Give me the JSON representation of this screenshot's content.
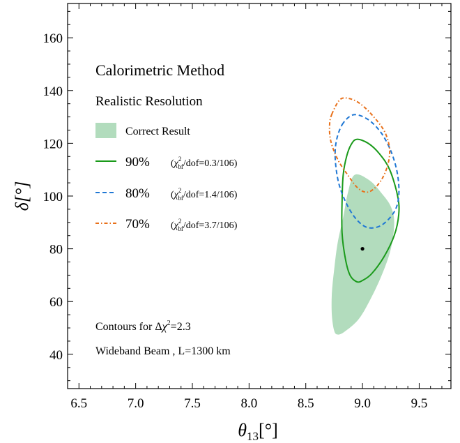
{
  "chart_data": {
    "type": "line",
    "title": "Calorimetric Method",
    "subtitle": "Realistic Resolution",
    "xlabel": "θ13[°]",
    "ylabel": "δ[°]",
    "xlim": [
      6.4,
      9.78
    ],
    "ylim": [
      27,
      173
    ],
    "x_ticks": [
      6.5,
      7.0,
      7.5,
      8.0,
      8.5,
      9.0,
      9.5
    ],
    "x_tick_labels": [
      "6.5",
      "7.0",
      "7.5",
      "8.0",
      "8.5",
      "9.0",
      "9.5"
    ],
    "y_ticks": [
      40,
      60,
      80,
      100,
      120,
      140,
      160
    ],
    "y_tick_labels": [
      "40",
      "60",
      "80",
      "100",
      "120",
      "140",
      "160"
    ],
    "grid": false,
    "legend": {
      "placement": "upper-left",
      "shaded_label": "Correct Result",
      "entries": [
        {
          "label": "90%",
          "chi2_text": "(χbf²/dof=0.3/106)",
          "chi2_num": "0.3/106",
          "color": "#1a9a1a",
          "style": "solid"
        },
        {
          "label": "80%",
          "chi2_text": "(χbf²/dof=1.4/106)",
          "chi2_num": "1.4/106",
          "color": "#1f77d4",
          "style": "dashed"
        },
        {
          "label": "70%",
          "chi2_text": "(χbf²/dof=3.7/106)",
          "chi2_num": "3.7/106",
          "color": "#e8701a",
          "style": "dashdot"
        }
      ]
    },
    "annotations": [
      "Contours for Δχ²=2.3",
      "Wideband Beam , L=1300 km"
    ],
    "best_fit_point": {
      "x": 9.0,
      "y": 80
    },
    "correct_result_region": {
      "color": "#b2dcbd",
      "points": [
        [
          8.93,
          108
        ],
        [
          9.06,
          106
        ],
        [
          9.17,
          101
        ],
        [
          9.25,
          96
        ],
        [
          9.28,
          90
        ],
        [
          9.25,
          80
        ],
        [
          9.17,
          70
        ],
        [
          9.06,
          60
        ],
        [
          8.96,
          53
        ],
        [
          8.84,
          48.5
        ],
        [
          8.78,
          47.5
        ],
        [
          8.75,
          49
        ],
        [
          8.73,
          55
        ],
        [
          8.73,
          63
        ],
        [
          8.75,
          72
        ],
        [
          8.78,
          82
        ],
        [
          8.83,
          92
        ],
        [
          8.87,
          101
        ],
        [
          8.93,
          108
        ]
      ]
    },
    "series": [
      {
        "name": "90%",
        "color": "#1a9a1a",
        "style": "solid",
        "points": [
          [
            8.95,
            121.5
          ],
          [
            9.05,
            120
          ],
          [
            9.15,
            116
          ],
          [
            9.24,
            110
          ],
          [
            9.31,
            100
          ],
          [
            9.32,
            93
          ],
          [
            9.28,
            85
          ],
          [
            9.19,
            77
          ],
          [
            9.08,
            70.5
          ],
          [
            9.0,
            68
          ],
          [
            8.95,
            67.5
          ],
          [
            8.89,
            70
          ],
          [
            8.85,
            76
          ],
          [
            8.82,
            86
          ],
          [
            8.82,
            98
          ],
          [
            8.83,
            108
          ],
          [
            8.86,
            115
          ],
          [
            8.9,
            119.5
          ],
          [
            8.95,
            121.5
          ]
        ]
      },
      {
        "name": "80%",
        "color": "#1f77d4",
        "style": "dashed",
        "points": [
          [
            8.82,
            127
          ],
          [
            8.9,
            130.5
          ],
          [
            8.98,
            130.5
          ],
          [
            9.08,
            128
          ],
          [
            9.18,
            123
          ],
          [
            9.26,
            116
          ],
          [
            9.31,
            108
          ],
          [
            9.32,
            100
          ],
          [
            9.28,
            94
          ],
          [
            9.17,
            89
          ],
          [
            9.05,
            88
          ],
          [
            8.95,
            91
          ],
          [
            8.86,
            97
          ],
          [
            8.79,
            105
          ],
          [
            8.76,
            114
          ],
          [
            8.77,
            121
          ],
          [
            8.82,
            127
          ]
        ]
      },
      {
        "name": "70%",
        "color": "#e8701a",
        "style": "dashdot",
        "points": [
          [
            8.73,
            131
          ],
          [
            8.8,
            136.5
          ],
          [
            8.88,
            137
          ],
          [
            8.98,
            135
          ],
          [
            9.1,
            130
          ],
          [
            9.2,
            124
          ],
          [
            9.24,
            117
          ],
          [
            9.21,
            110
          ],
          [
            9.14,
            104.5
          ],
          [
            9.05,
            101.5
          ],
          [
            8.96,
            103
          ],
          [
            8.87,
            108
          ],
          [
            8.78,
            114
          ],
          [
            8.72,
            121
          ],
          [
            8.71,
            127
          ],
          [
            8.73,
            131
          ]
        ]
      }
    ]
  }
}
